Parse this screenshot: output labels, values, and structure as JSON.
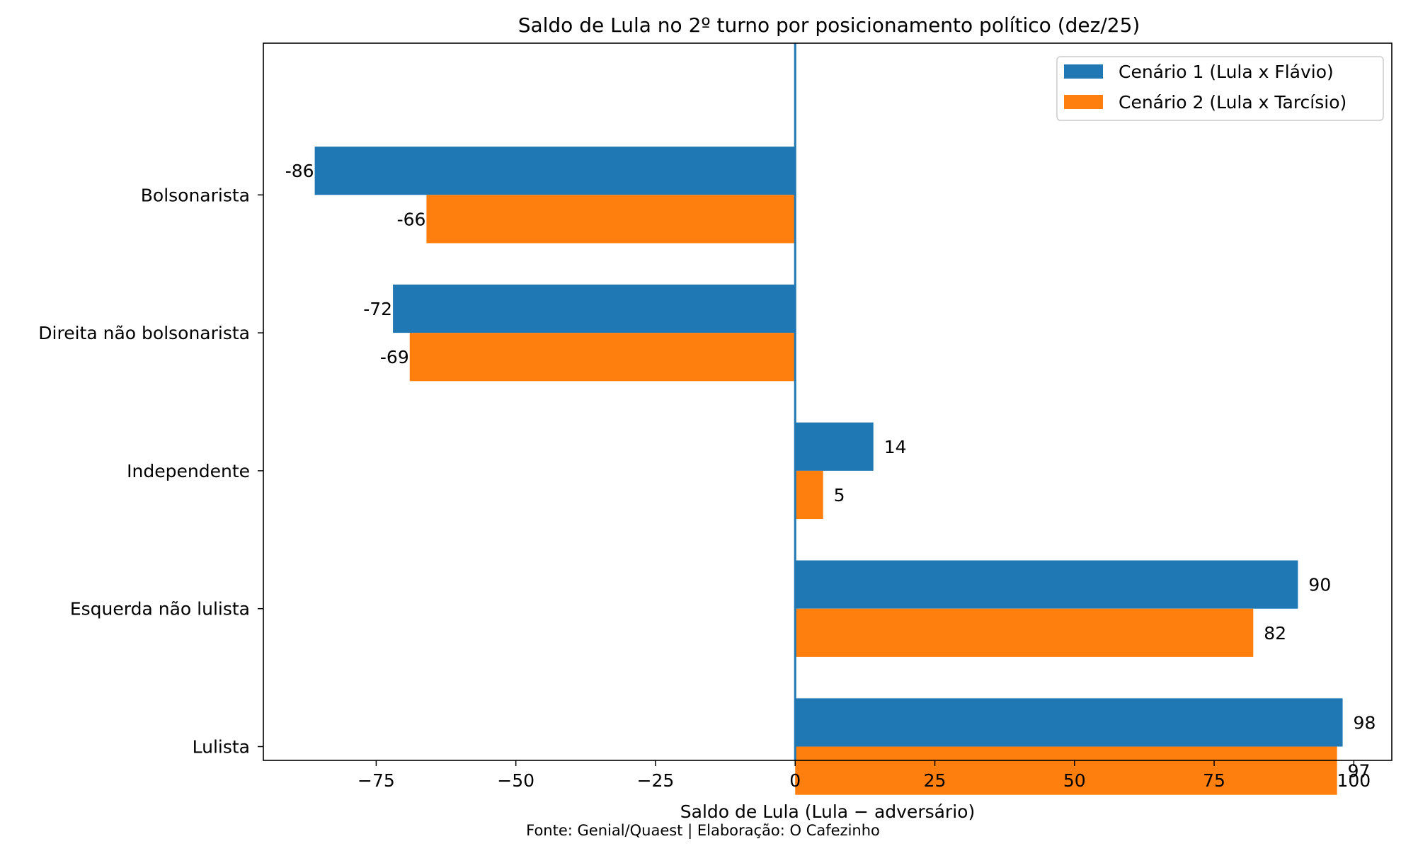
{
  "chart_data": {
    "type": "bar",
    "orientation": "horizontal",
    "title": "Saldo de Lula no 2º turno por posicionamento político (dez/25)",
    "xlabel": "Saldo de Lula (Lula − adversário)",
    "ylabel": "",
    "footnote": "Fonte: Genial/Quaest | Elaboração: O Cafezinho",
    "categories": [
      "Bolsonarista",
      "Direita não bolsonarista",
      "Independente",
      "Esquerda não lulista",
      "Lulista"
    ],
    "series": [
      {
        "name": "Cenário 1 (Lula x Flávio)",
        "color": "#1f77b4",
        "values": [
          -86,
          -72,
          14,
          90,
          98
        ]
      },
      {
        "name": "Cenário 2 (Lula x Tarcísio)",
        "color": "#ff7f0e",
        "values": [
          -66,
          -69,
          5,
          82,
          97
        ]
      }
    ],
    "xlim": [
      -95.2,
      106.8
    ],
    "xticks": [
      -75,
      -50,
      -25,
      0,
      25,
      50,
      75,
      100
    ],
    "xtick_labels": [
      "−75",
      "−50",
      "−25",
      "0",
      "25",
      "50",
      "75",
      "100"
    ],
    "reference_line": {
      "x": 0,
      "color": "#1f77b4"
    },
    "grid": false,
    "legend_position": "top-right"
  }
}
